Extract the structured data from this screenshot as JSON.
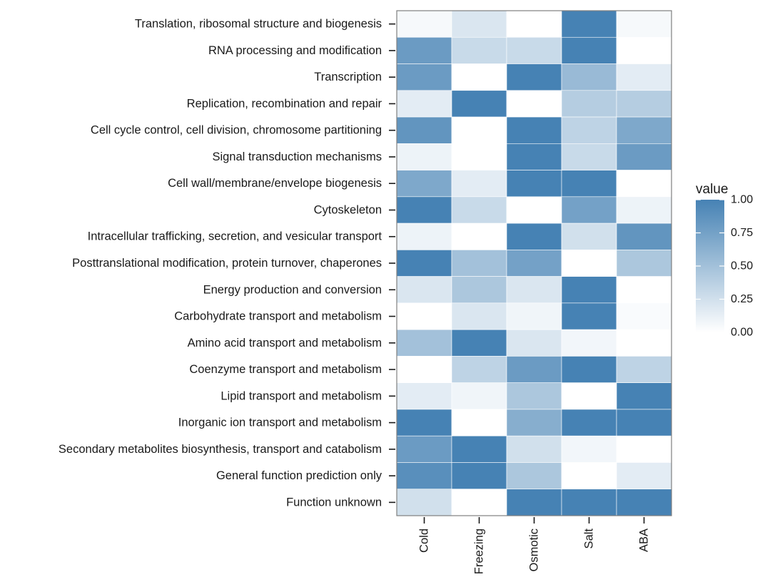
{
  "chart_data": {
    "type": "heatmap",
    "columns": [
      "Cold",
      "Freezing",
      "Osmotic",
      "Salt",
      "ABA"
    ],
    "rows": [
      "Translation, ribosomal structure and biogenesis",
      "RNA processing and modification",
      "Transcription",
      "Replication, recombination and repair",
      "Cell cycle control, cell division, chromosome partitioning",
      "Signal transduction mechanisms",
      "Cell wall/membrane/envelope biogenesis",
      "Cytoskeleton",
      "Intracellular trafficking, secretion, and vesicular transport",
      "Posttranslational modification, protein turnover, chaperones",
      "Energy production and conversion",
      "Carbohydrate transport and metabolism",
      "Amino acid transport and metabolism",
      "Coenzyme transport and metabolism",
      "Lipid transport and metabolism",
      "Inorganic ion transport and metabolism",
      "Secondary metabolites biosynthesis, transport and catabolism",
      "General function prediction only",
      "Function unknown"
    ],
    "values": [
      [
        0.05,
        0.2,
        0.0,
        1.0,
        0.05
      ],
      [
        0.8,
        0.3,
        0.3,
        1.0,
        0.0
      ],
      [
        0.8,
        0.0,
        1.0,
        0.55,
        0.15
      ],
      [
        0.15,
        1.0,
        0.0,
        0.4,
        0.4
      ],
      [
        0.85,
        0.0,
        1.0,
        0.35,
        0.7
      ],
      [
        0.1,
        0.0,
        1.0,
        0.3,
        0.8
      ],
      [
        0.7,
        0.15,
        1.0,
        1.0,
        0.0
      ],
      [
        1.0,
        0.3,
        0.0,
        0.75,
        0.1
      ],
      [
        0.1,
        0.0,
        1.0,
        0.25,
        0.85
      ],
      [
        1.0,
        0.5,
        0.75,
        0.0,
        0.45
      ],
      [
        0.2,
        0.45,
        0.2,
        1.0,
        0.0
      ],
      [
        0.0,
        0.2,
        0.08,
        1.0,
        0.03
      ],
      [
        0.5,
        1.0,
        0.2,
        0.07,
        0.0
      ],
      [
        0.0,
        0.35,
        0.8,
        1.0,
        0.35
      ],
      [
        0.15,
        0.08,
        0.45,
        0.0,
        1.0
      ],
      [
        1.0,
        0.0,
        0.65,
        1.0,
        1.0
      ],
      [
        0.8,
        1.0,
        0.25,
        0.07,
        0.0
      ],
      [
        0.9,
        1.0,
        0.45,
        0.0,
        0.15
      ],
      [
        0.25,
        0.0,
        1.0,
        1.0,
        1.0
      ]
    ],
    "legend": {
      "title": "value",
      "ticks": [
        "1.00",
        "0.75",
        "0.50",
        "0.25",
        "0.00"
      ],
      "tick_values": [
        1.0,
        0.75,
        0.5,
        0.25,
        0.0
      ],
      "placement": "right"
    },
    "color_low": "#ffffff",
    "color_high": "#4682b4",
    "range": [
      0,
      1
    ],
    "grid": false
  }
}
